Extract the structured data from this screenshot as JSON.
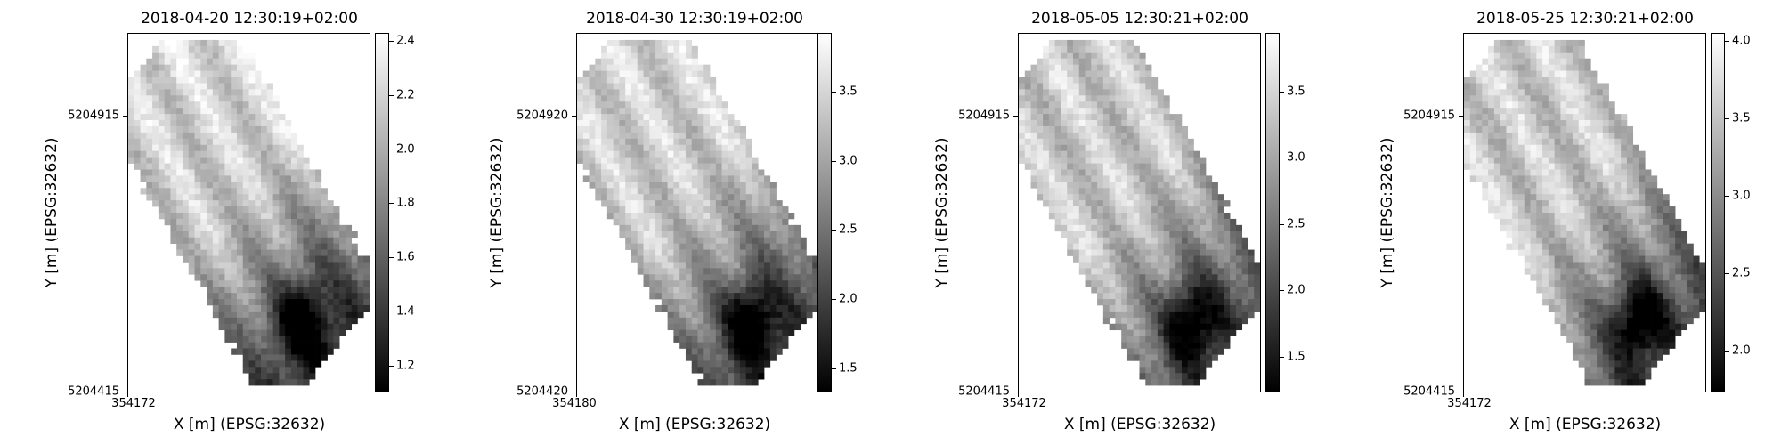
{
  "figure": {
    "colormap": "gray",
    "colors": {
      "low": "#000000",
      "high": "#ffffff",
      "background": "#ffffff"
    }
  },
  "chart_data": [
    {
      "type": "heatmap",
      "title": "2018-04-20 12:30:19+02:00",
      "xlabel": "X [m] (EPSG:32632)",
      "ylabel": "Y [m] (EPSG:32632)",
      "x_ticks": [
        "354172"
      ],
      "y_ticks": [
        "5204915",
        "5204415"
      ],
      "y_tick_values": [
        5204915,
        5204415
      ],
      "ylim": [
        5204415,
        5205065
      ],
      "colorbar": {
        "ticks": [
          "1.2",
          "1.4",
          "1.6",
          "1.8",
          "2.0",
          "2.2",
          "2.4"
        ],
        "values": [
          1.2,
          1.4,
          1.6,
          1.8,
          2.0,
          2.2,
          2.4
        ],
        "vmin": 1.1,
        "vmax": 2.43
      },
      "grid": false
    },
    {
      "type": "heatmap",
      "title": "2018-04-30 12:30:19+02:00",
      "xlabel": "X [m] (EPSG:32632)",
      "ylabel": "Y [m] (EPSG:32632)",
      "x_ticks": [
        "354180"
      ],
      "y_ticks": [
        "5204920",
        "5204420"
      ],
      "y_tick_values": [
        5204920,
        5204420
      ],
      "ylim": [
        5204420,
        5205070
      ],
      "colorbar": {
        "ticks": [
          "1.5",
          "2.0",
          "2.5",
          "3.0",
          "3.5"
        ],
        "values": [
          1.5,
          2.0,
          2.5,
          3.0,
          3.5
        ],
        "vmin": 1.33,
        "vmax": 3.92
      },
      "grid": false
    },
    {
      "type": "heatmap",
      "title": "2018-05-05 12:30:21+02:00",
      "xlabel": "X [m] (EPSG:32632)",
      "ylabel": "Y [m] (EPSG:32632)",
      "x_ticks": [
        "354172"
      ],
      "y_ticks": [
        "5204915",
        "5204415"
      ],
      "y_tick_values": [
        5204915,
        5204415
      ],
      "ylim": [
        5204415,
        5205065
      ],
      "colorbar": {
        "ticks": [
          "1.5",
          "2.0",
          "2.5",
          "3.0",
          "3.5"
        ],
        "values": [
          1.5,
          2.0,
          2.5,
          3.0,
          3.5
        ],
        "vmin": 1.23,
        "vmax": 3.94
      },
      "grid": false
    },
    {
      "type": "heatmap",
      "title": "2018-05-25 12:30:21+02:00",
      "xlabel": "X [m] (EPSG:32632)",
      "ylabel": "Y [m] (EPSG:32632)",
      "x_ticks": [
        "354172"
      ],
      "y_ticks": [
        "5204915",
        "5204415"
      ],
      "y_tick_values": [
        5204915,
        5204415
      ],
      "ylim": [
        5204415,
        5205065
      ],
      "colorbar": {
        "ticks": [
          "2.0",
          "2.5",
          "3.0",
          "3.5",
          "4.0"
        ],
        "values": [
          2.0,
          2.5,
          3.0,
          3.5,
          4.0
        ],
        "vmin": 1.73,
        "vmax": 4.05
      },
      "grid": false
    }
  ]
}
